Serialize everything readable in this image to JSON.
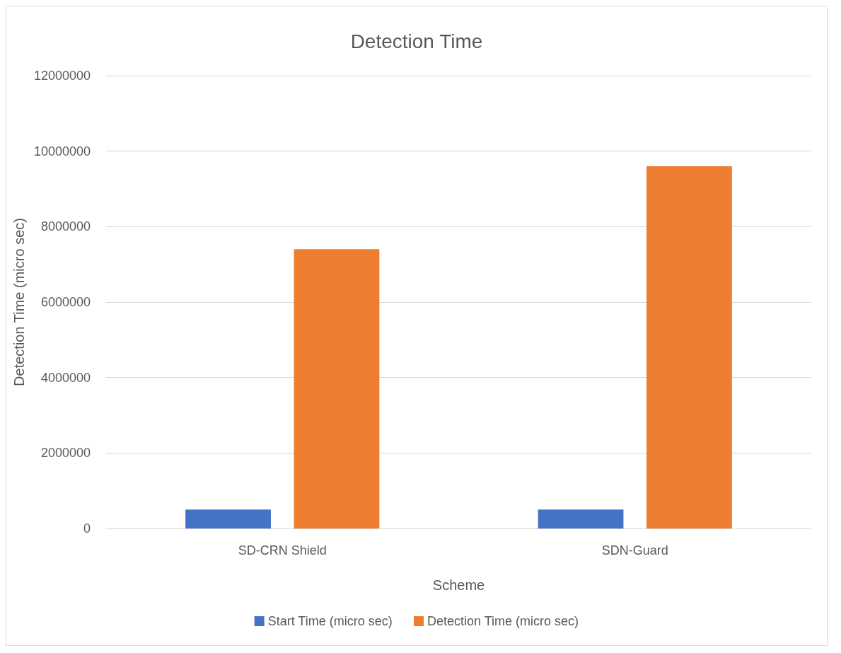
{
  "chart_data": {
    "type": "bar",
    "title": "Detection Time",
    "xlabel": "Scheme",
    "ylabel": "Detection Time (micro sec)",
    "categories": [
      "SD-CRN Shield",
      "SDN-Guard"
    ],
    "series": [
      {
        "name": "Start Time (micro sec)",
        "color": "#4472c4",
        "values": [
          500000,
          500000
        ]
      },
      {
        "name": "Detection Time (micro sec)",
        "color": "#ed7d31",
        "values": [
          7400000,
          9600000
        ]
      }
    ],
    "ylim": [
      0,
      12000000
    ],
    "yticks": [
      0,
      2000000,
      4000000,
      6000000,
      8000000,
      10000000,
      12000000
    ],
    "grid": "y",
    "legend": "bottom"
  }
}
